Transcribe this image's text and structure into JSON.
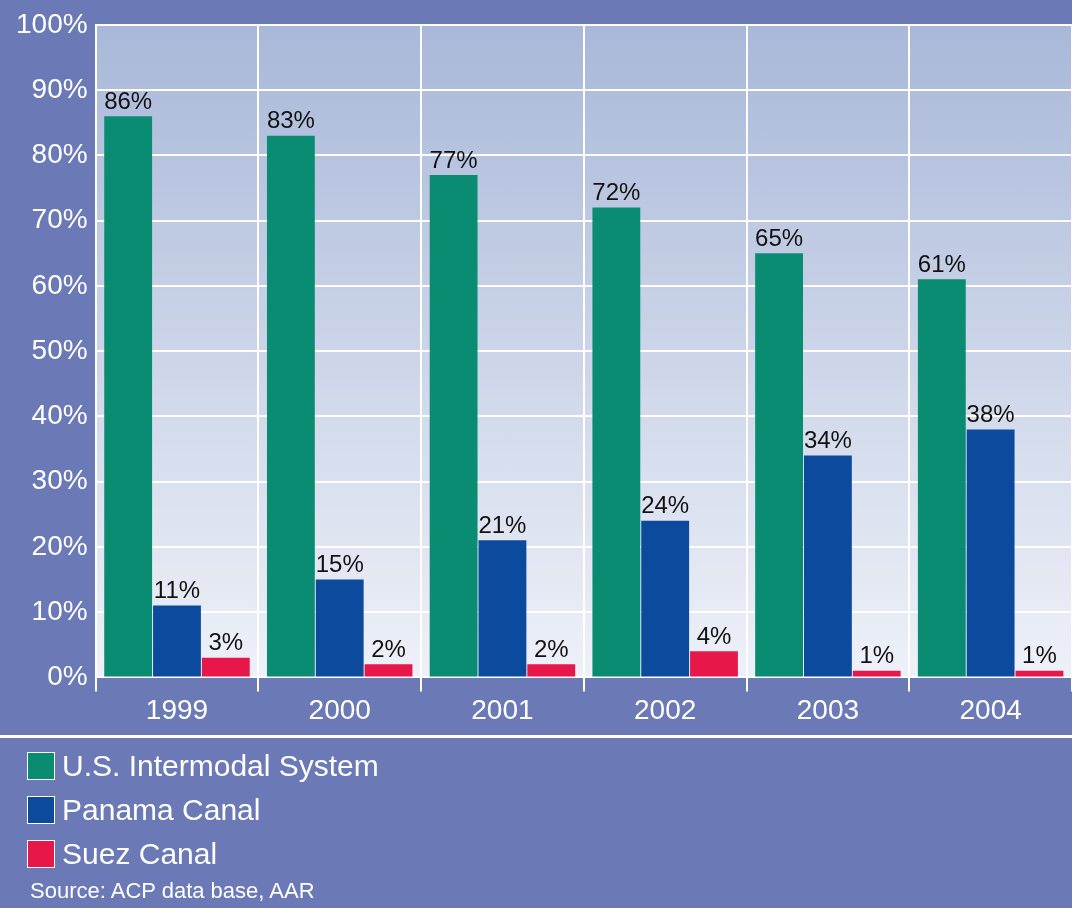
{
  "chart_data": {
    "type": "bar",
    "categories": [
      "1999",
      "2000",
      "2001",
      "2002",
      "2003",
      "2004"
    ],
    "series": [
      {
        "name": "U.S. Intermodal System",
        "color": "#0a8c72",
        "values": [
          86,
          83,
          77,
          72,
          65,
          61
        ],
        "value_labels": [
          "86%",
          "83%",
          "77%",
          "72%",
          "65%",
          "61%"
        ]
      },
      {
        "name": "Panama Canal",
        "color": "#0c4a9e",
        "values": [
          11,
          15,
          21,
          24,
          34,
          38
        ],
        "value_labels": [
          "11%",
          "15%",
          "21%",
          "24%",
          "34%",
          "38%"
        ]
      },
      {
        "name": "Suez Canal",
        "color": "#e8174a",
        "values": [
          3,
          2,
          2,
          4,
          1,
          1
        ],
        "value_labels": [
          "3%",
          "2%",
          "2%",
          "4%",
          "1%",
          "1%"
        ]
      }
    ],
    "ylim": [
      0,
      100
    ],
    "yticks": [
      {
        "value": 0,
        "label": "0%"
      },
      {
        "value": 10,
        "label": "10%"
      },
      {
        "value": 20,
        "label": "20%"
      },
      {
        "value": 30,
        "label": "30%"
      },
      {
        "value": 40,
        "label": "40%"
      },
      {
        "value": 50,
        "label": "50%"
      },
      {
        "value": 60,
        "label": "60%"
      },
      {
        "value": 70,
        "label": "70%"
      },
      {
        "value": 80,
        "label": "80%"
      },
      {
        "value": 90,
        "label": "90%"
      },
      {
        "value": 100,
        "label": "100%"
      }
    ],
    "grid": true,
    "legend": "bottom left",
    "annotations": [
      "Source: ACP data base, AAR"
    ]
  }
}
